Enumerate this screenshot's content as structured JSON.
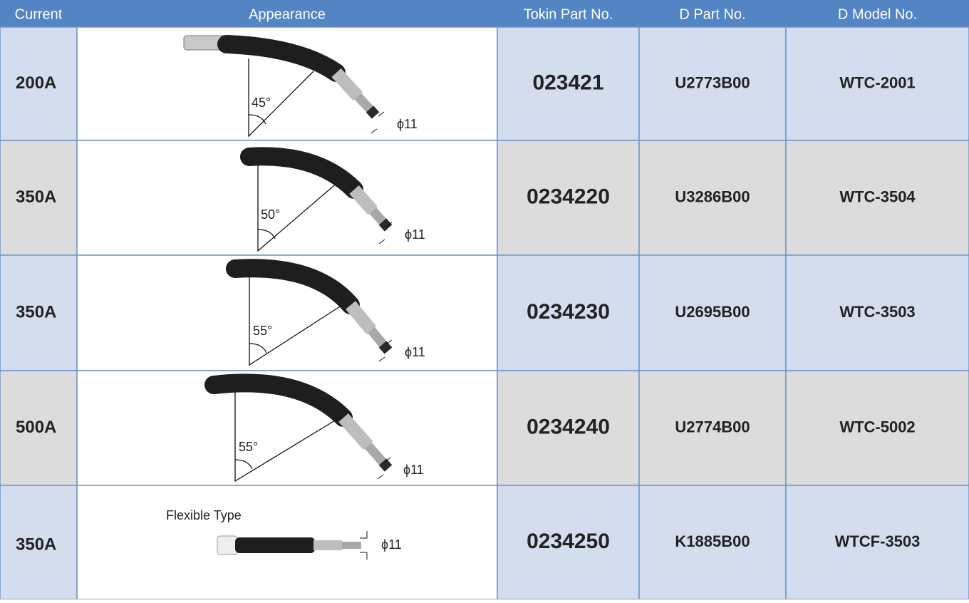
{
  "table": {
    "headers": [
      "Current",
      "Appearance",
      "Tokin Part No.",
      "D Part No.",
      "D Model No."
    ],
    "rows": [
      {
        "current": "200A",
        "appearance": {
          "angle": "45°",
          "diameter": "ϕ11"
        },
        "tokin_part_no": "023421",
        "d_part_no": "U2773B00",
        "d_model_no": "WTC-2001"
      },
      {
        "current": "350A",
        "appearance": {
          "angle": "50°",
          "diameter": "ϕ11"
        },
        "tokin_part_no": "0234220",
        "d_part_no": "U3286B00",
        "d_model_no": "WTC-3504"
      },
      {
        "current": "350A",
        "appearance": {
          "angle": "55°",
          "diameter": "ϕ11"
        },
        "tokin_part_no": "0234230",
        "d_part_no": "U2695B00",
        "d_model_no": "WTC-3503"
      },
      {
        "current": "500A",
        "appearance": {
          "angle": "55°",
          "diameter": "ϕ11"
        },
        "tokin_part_no": "0234240",
        "d_part_no": "U2774B00",
        "d_model_no": "WTC-5002"
      },
      {
        "current": "350A",
        "appearance": {
          "caption": "Flexible Type",
          "diameter": "ϕ11"
        },
        "tokin_part_no": "0234250",
        "d_part_no": "K1885B00",
        "d_model_no": "WTCF-3503"
      }
    ]
  }
}
